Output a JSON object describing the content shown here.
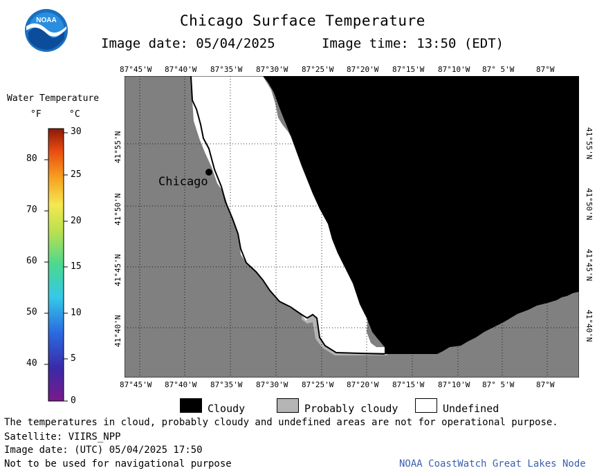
{
  "header": {
    "title": "Chicago Surface Temperature",
    "image_date": "Image date: 05/04/2025",
    "image_time": "Image time: 13:50 (EDT)"
  },
  "logo": {
    "text": "NOAA"
  },
  "colorbar": {
    "title": "Water Temperature",
    "unit_f": "°F",
    "unit_c": "°C",
    "f_ticks": [
      "80",
      "70",
      "60",
      "50",
      "40"
    ],
    "c_ticks": [
      "30",
      "25",
      "20",
      "15",
      "10",
      "5",
      "0"
    ]
  },
  "map": {
    "lon_labels": [
      "87°45'W",
      "87°40'W",
      "87°35'W",
      "87°30'W",
      "87°25'W",
      "87°20'W",
      "87°15'W",
      "87°10'W",
      "87° 5'W",
      "87°W"
    ],
    "lat_labels": [
      "41°55'N",
      "41°50'N",
      "41°45'N",
      "41°40'N"
    ],
    "city_label": "Chicago",
    "colors": {
      "land": "#808080",
      "cloudy": "#000000",
      "probably_cloudy": "#b4b4b4",
      "undefined": "#ffffff"
    }
  },
  "legend": {
    "cloudy": "Cloudy",
    "probably_cloudy": "Probably cloudy",
    "undefined": "Undefined"
  },
  "footer": {
    "note": "The temperatures in cloud, probably cloudy and undefined areas are not for operational purpose.",
    "satellite": "Satellite: VIIRS_NPP",
    "utc_date": "Image date: (UTC) 05/04/2025  17:50",
    "nav_warning": "Not to be used for navigational purpose",
    "credit": "NOAA CoastWatch Great Lakes Node",
    "credit_color": "#3a5fb0"
  }
}
